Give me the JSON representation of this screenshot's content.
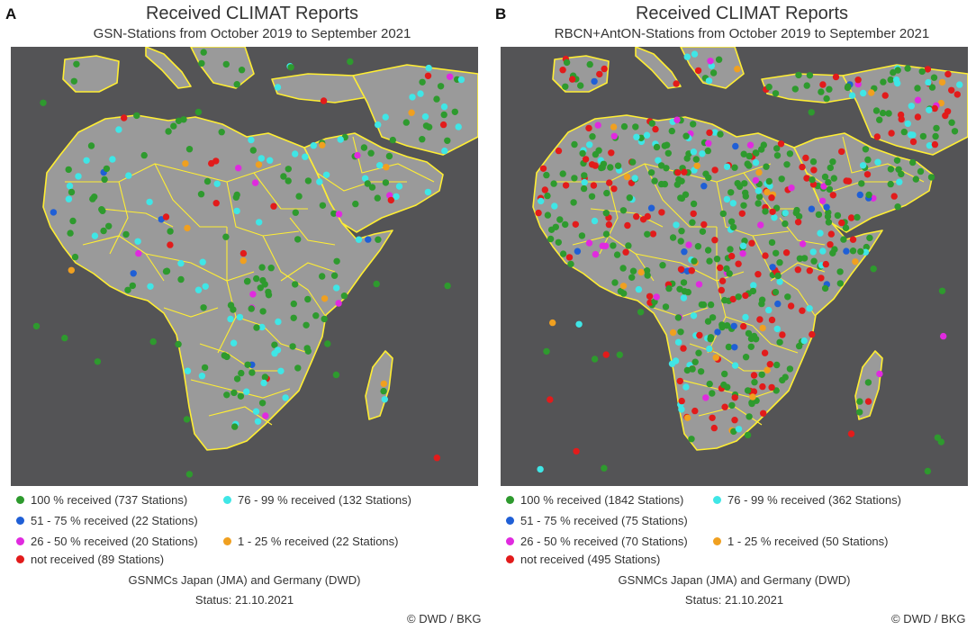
{
  "panels": [
    {
      "id": "A",
      "letter": "A",
      "title": "Received CLIMAT Reports",
      "subtitle": "GSN-Stations from October 2019 to September 2021",
      "legend": [
        {
          "label": "100 % received (737 Stations)",
          "color": "#2e9a2e",
          "category": "full"
        },
        {
          "label": "76 - 99 % received (132 Stations)",
          "color": "#3fe6e6",
          "category": "high"
        },
        {
          "label": "51 - 75 % received (22 Stations)",
          "color": "#1f5fd6",
          "category": "mid"
        },
        {
          "label": "26 - 50 % received (20 Stations)",
          "color": "#e02adf",
          "category": "low"
        },
        {
          "label": "1 - 25 % received (22 Stations)",
          "color": "#f0a020",
          "category": "minimal"
        },
        {
          "label": "not received (89 Stations)",
          "color": "#e21b1b",
          "category": "none"
        }
      ],
      "footer_source": "GSNMCs Japan (JMA) and Germany (DWD)",
      "footer_status": "Status: 21.10.2021",
      "copyright": "© DWD / BKG"
    },
    {
      "id": "B",
      "letter": "B",
      "title": "Received CLIMAT Reports",
      "subtitle": "RBCN+AntON-Stations from October 2019 to September 2021",
      "legend": [
        {
          "label": "100 % received (1842 Stations)",
          "color": "#2e9a2e",
          "category": "full"
        },
        {
          "label": "76 - 99 % received (362 Stations)",
          "color": "#3fe6e6",
          "category": "high"
        },
        {
          "label": "51 - 75 % received (75 Stations)",
          "color": "#1f5fd6",
          "category": "mid"
        },
        {
          "label": "26 - 50 % received (70 Stations)",
          "color": "#e02adf",
          "category": "low"
        },
        {
          "label": "1 - 25 % received (50 Stations)",
          "color": "#f0a020",
          "category": "minimal"
        },
        {
          "label": "not received (495 Stations)",
          "color": "#e21b1b",
          "category": "none"
        }
      ],
      "footer_source": "GSNMCs Japan (JMA) and Germany (DWD)",
      "footer_status": "Status: 21.10.2021",
      "copyright": "© DWD / BKG"
    }
  ],
  "map_colors": {
    "ocean": "#545456",
    "land": "#9a9a9a",
    "border": "#ffee33"
  }
}
